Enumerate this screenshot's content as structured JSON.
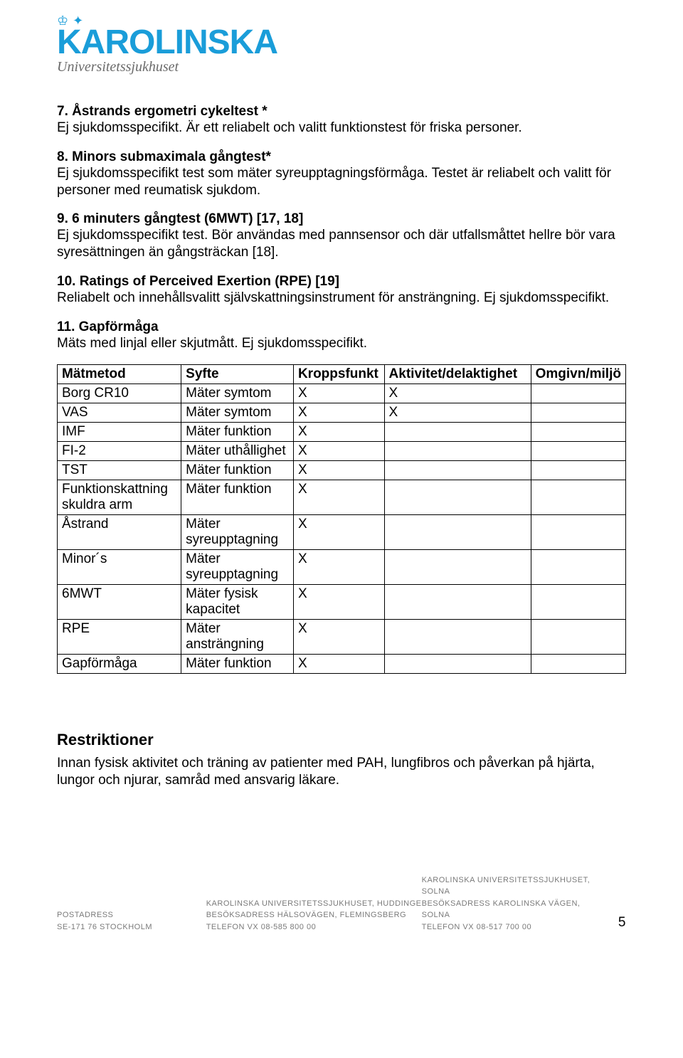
{
  "logo": {
    "main": "KAROLINSKA",
    "sub": "Universitetssjukhuset",
    "crown_glyph_left": "♔",
    "crown_glyph_right": "✦",
    "color": "#1a9dd9",
    "sub_color": "#6b6b6b"
  },
  "sections": [
    {
      "title": "7. Åstrands ergometri cykeltest *",
      "body": "Ej sjukdomsspecifikt. Är ett reliabelt och valitt funktionstest för friska personer."
    },
    {
      "title": "8. Minors submaximala gångtest*",
      "body": "Ej sjukdomsspecifikt test som mäter syreupptagningsförmåga. Testet är reliabelt och valitt för personer med reumatisk sjukdom."
    },
    {
      "title": "9. 6 minuters gångtest (6MWT) [17, 18]",
      "body": "Ej sjukdomsspecifikt test. Bör användas med pannsensor och där utfallsmåttet hellre bör vara syresättningen än gångsträckan [18]."
    },
    {
      "title": "10. Ratings of Perceived Exertion (RPE) [19]",
      "body": "Reliabelt och innehållsvalitt självskattningsinstrument för ansträngning. Ej sjukdomsspecifikt."
    },
    {
      "title": "11. Gapförmåga",
      "body": "Mäts med linjal eller skjutmått. Ej sjukdomsspecifikt."
    }
  ],
  "table": {
    "columns": [
      "Mätmetod",
      "Syfte",
      "Kroppsfunkt",
      "Aktivitet/delaktighet",
      "Omgivn/miljö"
    ],
    "col_widths": [
      "22%",
      "20%",
      "16%",
      "26%",
      "16%"
    ],
    "rows": [
      [
        "Borg CR10",
        "Mäter symtom",
        "X",
        "X",
        ""
      ],
      [
        "VAS",
        "Mäter symtom",
        "X",
        "X",
        ""
      ],
      [
        "IMF",
        "Mäter funktion",
        "X",
        "",
        ""
      ],
      [
        "FI-2",
        "Mäter uthållighet",
        "X",
        "",
        ""
      ],
      [
        "TST",
        "Mäter funktion",
        "X",
        "",
        ""
      ],
      [
        "Funktionskattning skuldra arm",
        "Mäter funktion",
        "X",
        "",
        ""
      ],
      [
        "Åstrand",
        "Mäter syreupptagning",
        "X",
        "",
        ""
      ],
      [
        "Minor´s",
        "Mäter syreupptagning",
        "X",
        "",
        ""
      ],
      [
        "6MWT",
        "Mäter fysisk kapacitet",
        "X",
        "",
        ""
      ],
      [
        "RPE",
        "Mäter ansträngning",
        "X",
        "",
        ""
      ],
      [
        "Gapförmåga",
        "Mäter funktion",
        "X",
        "",
        ""
      ]
    ]
  },
  "restrictions": {
    "title": "Restriktioner",
    "body": "Innan fysisk aktivitet och träning av patienter med PAH, lungfibros och påverkan på hjärta, lungor och njurar, samråd med ansvarig läkare."
  },
  "footer": {
    "left": {
      "line1_label": "POSTADRESS",
      "line2": "SE-171 76 STOCKHOLM"
    },
    "mid": {
      "line1": "KAROLINSKA UNIVERSITETSSJUKHUSET, HUDDINGE",
      "line2_label": "BESÖKSADRESS",
      "line2_val": "HÄLSOVÄGEN, FLEMINGSBERG",
      "line3_label": "TELEFON VX",
      "line3_val": "08-585 800 00"
    },
    "right": {
      "line1": "KAROLINSKA UNIVERSITETSSJUKHUSET, SOLNA",
      "line2_label": "BESÖKSADRESS",
      "line2_val": "KAROLINSKA VÄGEN, SOLNA",
      "line3_label": "TELEFON VX",
      "line3_val": "08-517 700 00"
    },
    "page_number": "5"
  }
}
